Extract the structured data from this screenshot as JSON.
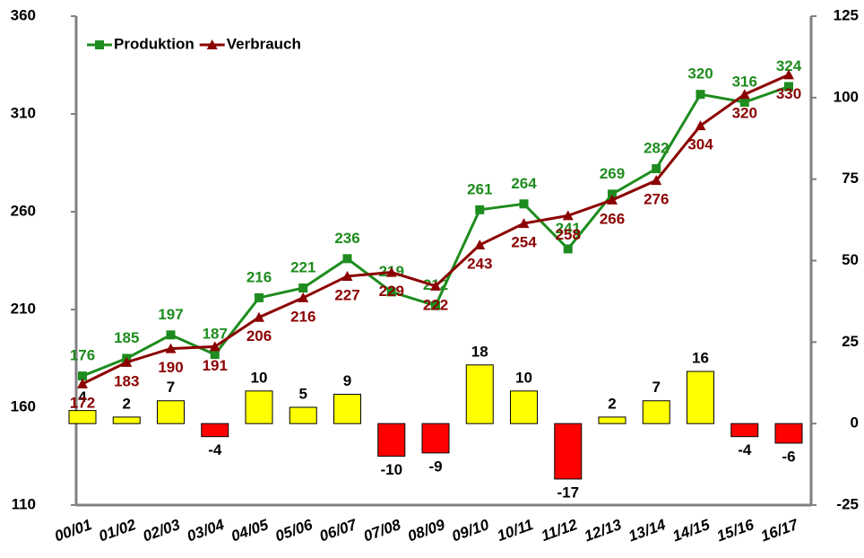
{
  "chart_data": {
    "type": "line",
    "categories": [
      "00/01",
      "01/02",
      "02/03",
      "03/04",
      "04/05",
      "05/06",
      "06/07",
      "07/08",
      "08/09",
      "09/10",
      "10/11",
      "11/12",
      "12/13",
      "13/14",
      "14/15",
      "15/16",
      "16/17"
    ],
    "series": [
      {
        "name": "Produktion",
        "type": "line",
        "color": "#1e8c1e",
        "values": [
          176,
          185,
          197,
          187,
          216,
          221,
          236,
          219,
          212,
          261,
          264,
          241,
          269,
          282,
          320,
          316,
          324
        ]
      },
      {
        "name": "Verbrauch",
        "type": "line",
        "color": "#8b0000",
        "values": [
          172,
          183,
          190,
          191,
          206,
          216,
          227,
          229,
          222,
          243,
          254,
          258,
          266,
          276,
          304,
          320,
          330
        ]
      },
      {
        "type": "bar",
        "axis": "y2",
        "color": "#ffff00",
        "negative_color": "#ff0000",
        "values": [
          4,
          2,
          7,
          -4,
          10,
          5,
          9,
          -10,
          -9,
          18,
          10,
          -17,
          2,
          7,
          16,
          -4,
          -6
        ]
      }
    ],
    "ylim": [
      110,
      360
    ],
    "yticks": [
      110,
      160,
      210,
      260,
      310,
      360
    ],
    "y2lim": [
      -25,
      125
    ],
    "y2ticks": [
      -25,
      0,
      25,
      50,
      75,
      100,
      125
    ],
    "legend": "top-left"
  }
}
